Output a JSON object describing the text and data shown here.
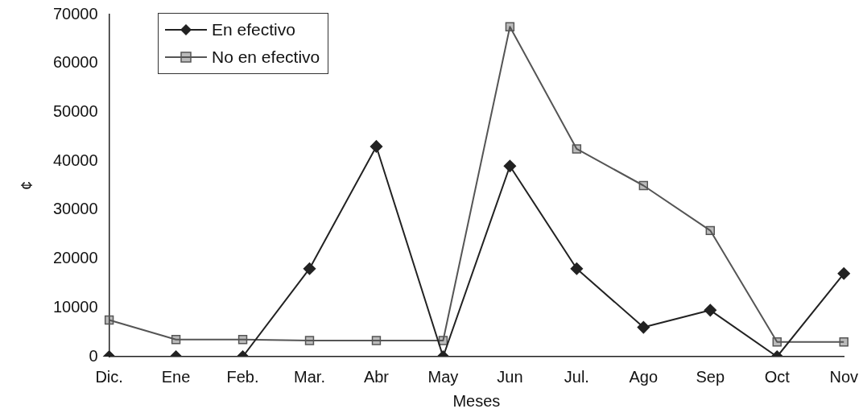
{
  "chart_data": {
    "type": "line",
    "xlabel": "Meses",
    "ylabel": "¢",
    "categories": [
      "Dic.",
      "Ene",
      "Feb.",
      "Mar.",
      "Abr",
      "May",
      "Jun",
      "Jul.",
      "Ago",
      "Sep",
      "Oct",
      "Nov"
    ],
    "series": [
      {
        "name": "En efectivo",
        "color": "#222222",
        "marker": "diamond",
        "values": [
          0,
          0,
          0,
          18000,
          43000,
          0,
          39000,
          18000,
          6000,
          9500,
          0,
          17000
        ]
      },
      {
        "name": "No en efectivo",
        "color": "#555555",
        "marker": "square",
        "values": [
          7500,
          3500,
          3500,
          3300,
          3300,
          3300,
          67500,
          42500,
          35000,
          25800,
          3000,
          3000
        ]
      }
    ],
    "ylim": [
      0,
      70000
    ],
    "yticks": [
      0,
      10000,
      20000,
      30000,
      40000,
      50000,
      60000,
      70000
    ],
    "grid": false,
    "legend": "top left",
    "line_style": "solid"
  }
}
